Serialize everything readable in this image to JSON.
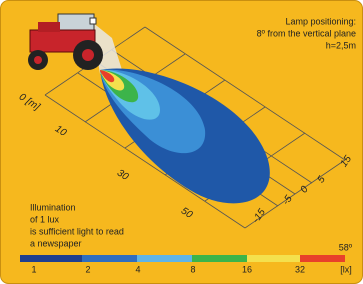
{
  "header": {
    "lines": [
      "Lamp positioning:",
      "8º from the vertical plane",
      "h=2,5m"
    ]
  },
  "distance_labels": [
    "0 [m]",
    "10",
    "30",
    "50"
  ],
  "lateral_labels": [
    "15",
    "5",
    "0",
    "-5",
    "-15"
  ],
  "note": {
    "lines": [
      "Illumination",
      "of 1 lux",
      "is sufficient light to read",
      "a newspaper"
    ]
  },
  "angle": "58º",
  "scale": {
    "labels": [
      "1",
      "2",
      "4",
      "8",
      "16",
      "32"
    ],
    "unit": "[lx]"
  }
}
